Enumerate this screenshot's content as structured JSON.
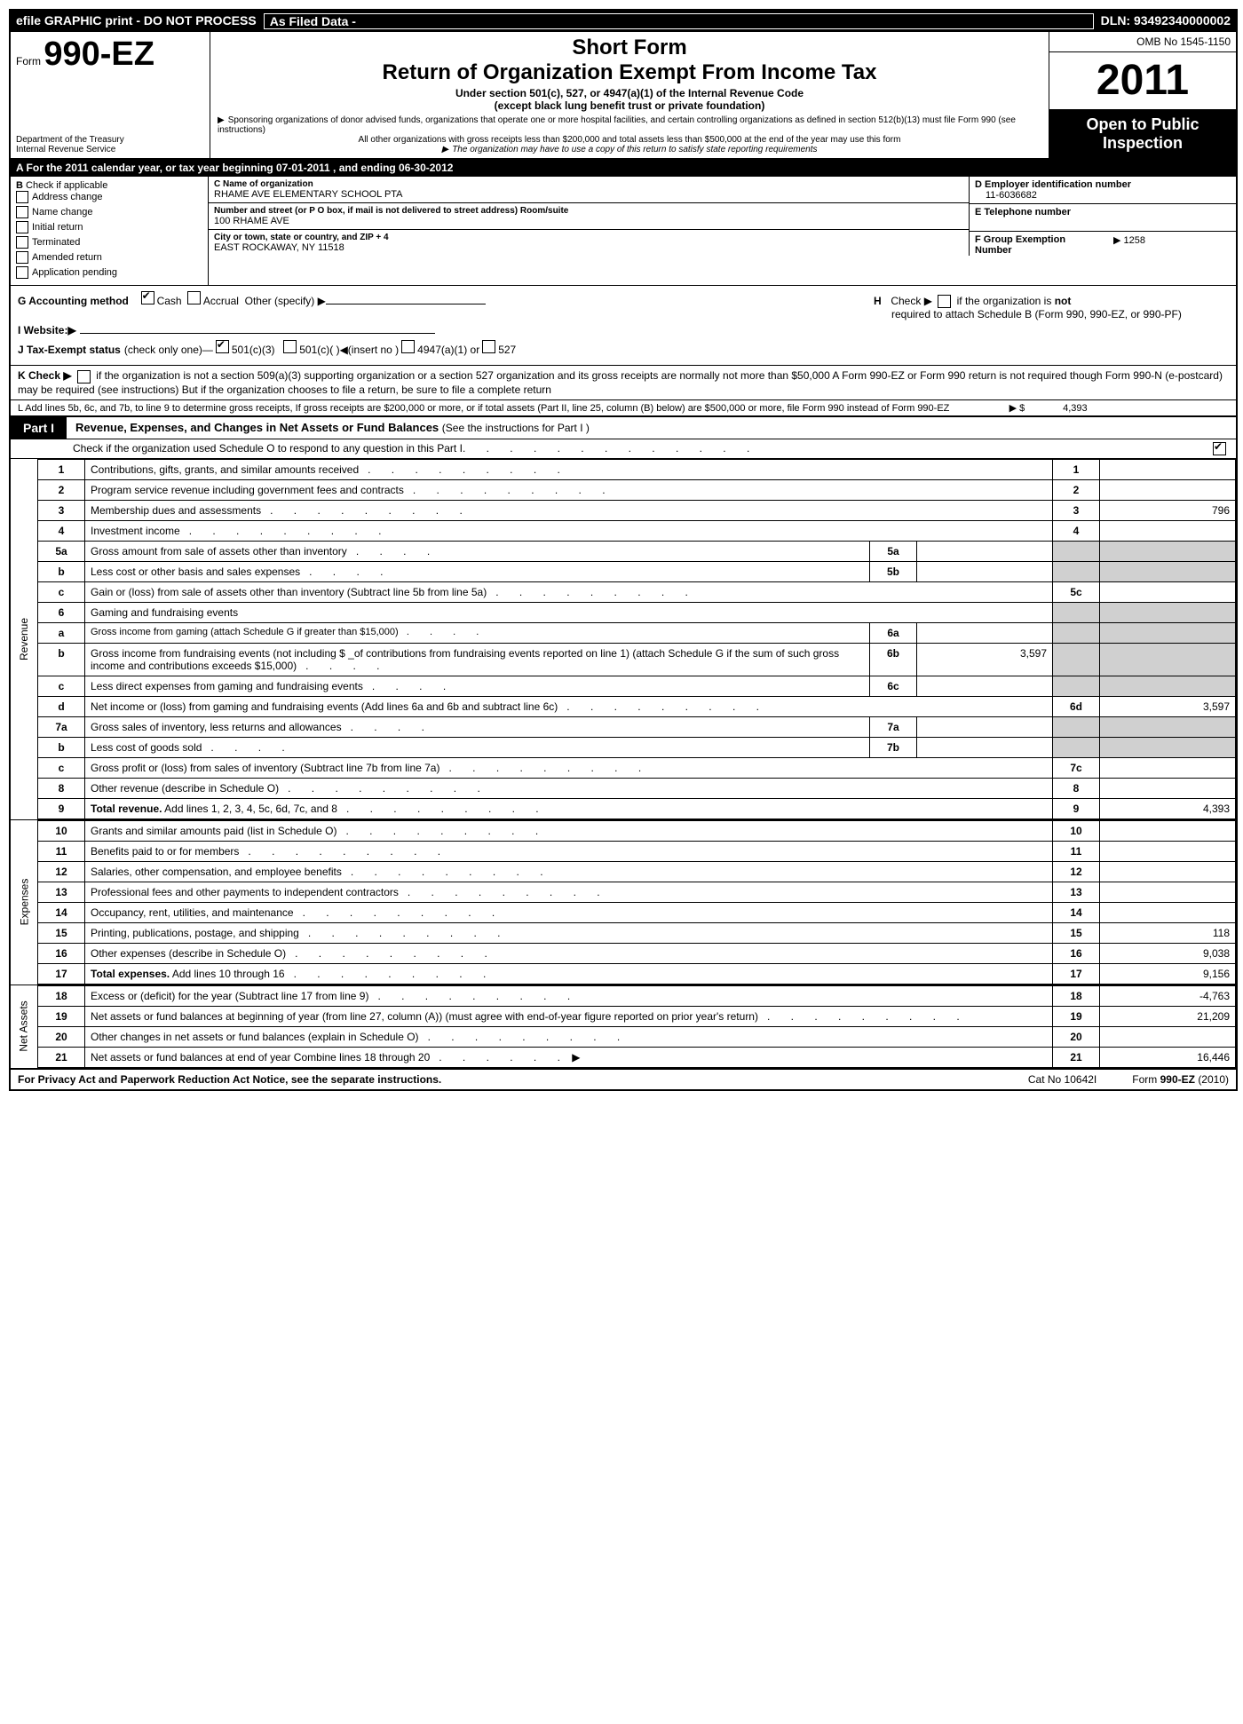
{
  "topbar": {
    "left": "efile GRAPHIC print - DO NOT PROCESS",
    "middle": "As Filed Data -",
    "right": "DLN: 93492340000002"
  },
  "header": {
    "form_prefix": "Form",
    "form_number": "990-EZ",
    "dept1": "Department of the Treasury",
    "dept2": "Internal Revenue Service",
    "short_form": "Short Form",
    "title": "Return of Organization Exempt From Income Tax",
    "sub1": "Under section 501(c), 527, or 4947(a)(1) of the Internal Revenue Code",
    "sub2": "(except black lung benefit trust or private foundation)",
    "fine1": "Sponsoring organizations of donor advised funds, organizations that operate one or more hospital facilities, and certain controlling organizations as defined in section 512(b)(13) must file Form 990 (see instructions)",
    "fine2": "All other organizations with gross receipts less than $200,000 and total assets less than $500,000 at the end of the year may use this form",
    "fine3": "The organization may have to use a copy of this return to satisfy state reporting requirements",
    "omb": "OMB No 1545-1150",
    "year": "2011",
    "open_public": "Open to Public Inspection"
  },
  "section_a": "A  For the 2011 calendar year, or tax year beginning 07-01-2011              , and ending 06-30-2012",
  "col_b": {
    "hdr": "B",
    "label": "Check if applicable",
    "items": [
      "Address change",
      "Name change",
      "Initial return",
      "Terminated",
      "Amended return",
      "Application pending"
    ]
  },
  "col_c": {
    "name_hdr": "C Name of organization",
    "name": "RHAME AVE ELEMENTARY SCHOOL PTA",
    "street_hdr": "Number and street (or P  O  box, if mail is not delivered to street address) Room/suite",
    "street": "100 RHAME AVE",
    "city_hdr": "City or town, state or country, and ZIP + 4",
    "city": "EAST ROCKAWAY, NY  11518"
  },
  "col_d": {
    "ein_hdr": "D Employer identification number",
    "ein": "11-6036682",
    "tel_hdr": "E Telephone number",
    "group_hdr": "F Group Exemption Number",
    "group": "▶ 1258"
  },
  "misc": {
    "g_label": "G Accounting method",
    "g_cash": "Cash",
    "g_accrual": "Accrual",
    "g_other": "Other (specify) ▶",
    "h_label": "H",
    "h_text": "Check ▶",
    "h_rest": "if the organization is",
    "h_not": "not",
    "h_rest2": "required to attach Schedule B (Form 990, 990-EZ, or 990-PF)",
    "i_label": "I Website:▶",
    "j_label": "J Tax-Exempt status",
    "j_paren": "(check only one)—",
    "j_501c3": "501(c)(3)",
    "j_501c": "501(c)(  )",
    "j_insert": "◀(insert no )",
    "j_4947": "4947(a)(1) or",
    "j_527": "527",
    "k_label": "K Check ▶",
    "k_text": "if the organization is not a section 509(a)(3) supporting organization or a section 527 organization and its gross receipts are normally not more than   $50,000  A Form 990-EZ or Form 990 return is not required though Form 990-N (e-postcard) may be required (see instructions)  But if the organization chooses to file a return, be sure to file a complete return",
    "l_text": "L Add lines 5b, 6c, and 7b, to line 9 to determine gross receipts, If gross receipts are $200,000 or more, or if total assets (Part II, line 25, column (B) below) are $500,000 or more, file Form 990 instead of Form 990-EZ",
    "l_arrow": "▶ $",
    "l_val": "4,393"
  },
  "part1": {
    "tab": "Part I",
    "title": "Revenue, Expenses, and Changes in Net Assets or Fund Balances",
    "note": "(See the instructions for Part I )",
    "schedule_o": "Check if the organization used Schedule O to respond to any question in this Part I"
  },
  "sections": [
    {
      "label": "Revenue",
      "rows": [
        {
          "n": "1",
          "d": "Contributions, gifts, grants, and similar amounts received",
          "rn": "1",
          "rv": ""
        },
        {
          "n": "2",
          "d": "Program service revenue including government fees and contracts",
          "rn": "2",
          "rv": ""
        },
        {
          "n": "3",
          "d": "Membership dues and assessments",
          "rn": "3",
          "rv": "796"
        },
        {
          "n": "4",
          "d": "Investment income",
          "rn": "4",
          "rv": ""
        },
        {
          "n": "5a",
          "d": "Gross amount from sale of assets other than inventory",
          "in": "5a",
          "iv": "",
          "shade": true
        },
        {
          "n": "b",
          "d": "Less  cost or other basis and sales expenses",
          "in": "5b",
          "iv": "",
          "shade": true
        },
        {
          "n": "c",
          "d": "Gain or (loss) from sale of assets other than inventory (Subtract line 5b from line 5a)",
          "rn": "5c",
          "rv": ""
        },
        {
          "n": "6",
          "d": "Gaming and fundraising events",
          "shade_all": true
        },
        {
          "n": "a",
          "d": "Gross income from gaming (attach Schedule G if greater than $15,000)",
          "in": "6a",
          "iv": "",
          "shade": true,
          "small": true
        },
        {
          "n": "b",
          "d": "Gross income from fundraising events (not including $ _of contributions from fundraising events reported on line 1) (attach Schedule G if the sum of such gross income and contributions exceeds $15,000)",
          "in": "6b",
          "iv": "3,597",
          "shade": true
        },
        {
          "n": "c",
          "d": "Less  direct expenses from gaming and fundraising events",
          "in": "6c",
          "iv": "",
          "shade": true
        },
        {
          "n": "d",
          "d": "Net income or (loss) from gaming and fundraising events (Add lines 6a and 6b and subtract line 6c)",
          "rn": "6d",
          "rv": "3,597"
        },
        {
          "n": "7a",
          "d": "Gross sales of inventory, less returns and allowances",
          "in": "7a",
          "iv": "",
          "shade": true
        },
        {
          "n": "b",
          "d": "Less  cost of goods sold",
          "in": "7b",
          "iv": "",
          "shade": true
        },
        {
          "n": "c",
          "d": "Gross profit or (loss) from sales of inventory (Subtract line 7b from line 7a)",
          "rn": "7c",
          "rv": ""
        },
        {
          "n": "8",
          "d": "Other revenue (describe in Schedule O)",
          "rn": "8",
          "rv": ""
        },
        {
          "n": "9",
          "d": "<b>Total revenue.</b> Add lines 1, 2, 3, 4, 5c, 6d, 7c, and 8",
          "rn": "9",
          "rv": "4,393",
          "bold": true
        }
      ]
    },
    {
      "label": "Expenses",
      "rows": [
        {
          "n": "10",
          "d": "Grants and similar amounts paid (list in Schedule O)",
          "rn": "10",
          "rv": ""
        },
        {
          "n": "11",
          "d": "Benefits paid to or for members",
          "rn": "11",
          "rv": ""
        },
        {
          "n": "12",
          "d": "Salaries, other compensation, and employee benefits",
          "rn": "12",
          "rv": ""
        },
        {
          "n": "13",
          "d": "Professional fees and other payments to independent contractors",
          "rn": "13",
          "rv": ""
        },
        {
          "n": "14",
          "d": "Occupancy, rent, utilities, and maintenance",
          "rn": "14",
          "rv": ""
        },
        {
          "n": "15",
          "d": "Printing, publications, postage, and shipping",
          "rn": "15",
          "rv": "118"
        },
        {
          "n": "16",
          "d": "Other expenses (describe in Schedule O)",
          "rn": "16",
          "rv": "9,038"
        },
        {
          "n": "17",
          "d": "<b>Total expenses.</b> Add lines 10 through 16",
          "rn": "17",
          "rv": "9,156",
          "bold": true
        }
      ]
    },
    {
      "label": "Net Assets",
      "rows": [
        {
          "n": "18",
          "d": "Excess or (deficit) for the year (Subtract line 17 from line 9)",
          "rn": "18",
          "rv": "-4,763"
        },
        {
          "n": "19",
          "d": "Net assets or fund balances at beginning of year (from line 27, column (A)) (must agree with end-of-year figure reported on prior year's return)",
          "rn": "19",
          "rv": "21,209"
        },
        {
          "n": "20",
          "d": "Other changes in net assets or fund balances (explain in Schedule O)",
          "rn": "20",
          "rv": ""
        },
        {
          "n": "21",
          "d": "Net assets or fund balances at end of year  Combine lines 18 through 20",
          "rn": "21",
          "rv": "16,446",
          "arrow": true
        }
      ]
    }
  ],
  "footer": {
    "left": "For Privacy Act and Paperwork Reduction Act Notice, see the separate instructions.",
    "middle": "Cat  No  10642I",
    "right_label": "Form",
    "right_form": "990-EZ",
    "right_year": "(2010)"
  }
}
